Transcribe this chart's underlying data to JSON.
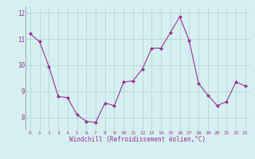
{
  "x": [
    0,
    1,
    2,
    3,
    4,
    5,
    6,
    7,
    8,
    9,
    10,
    11,
    12,
    13,
    14,
    15,
    16,
    17,
    18,
    19,
    20,
    21,
    22,
    23
  ],
  "y": [
    11.2,
    10.9,
    9.95,
    8.8,
    8.75,
    8.1,
    7.85,
    7.8,
    8.55,
    8.45,
    9.35,
    9.4,
    9.85,
    10.65,
    10.65,
    11.25,
    11.85,
    10.95,
    9.3,
    8.85,
    8.45,
    8.6,
    9.35,
    9.2
  ],
  "line_color": "#993399",
  "marker": "D",
  "marker_size": 2,
  "bg_color": "#d6f0f0",
  "grid_color": "#b0d8d8",
  "xlabel": "Windchill (Refroidissement éolien,°C)",
  "xlabel_color": "#993399",
  "tick_color": "#993399",
  "ylim": [
    7.5,
    12.25
  ],
  "xlim": [
    -0.5,
    23.5
  ],
  "yticks": [
    8,
    9,
    10,
    11,
    12
  ],
  "xticks": [
    0,
    1,
    2,
    3,
    4,
    5,
    6,
    7,
    8,
    9,
    10,
    11,
    12,
    13,
    14,
    15,
    16,
    17,
    18,
    19,
    20,
    21,
    22,
    23
  ]
}
